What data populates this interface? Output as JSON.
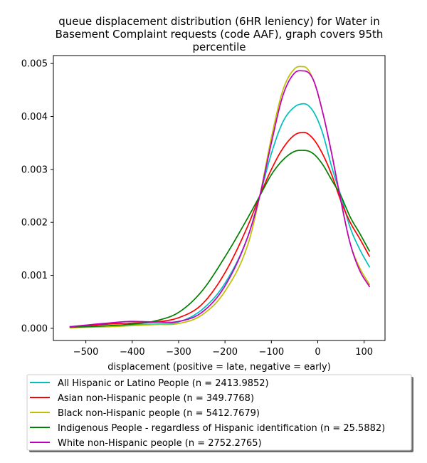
{
  "chart_data": {
    "type": "line",
    "title": [
      "queue displacement distribution (6HR leniency) for Water in",
      "Basement Complaint  requests (code AAF), graph covers 95th",
      "percentile"
    ],
    "xlabel": "displacement (positive = late, negative = early)",
    "ylabel": "",
    "xlim": [
      -570,
      145
    ],
    "ylim": [
      -0.00023,
      0.00515
    ],
    "xticks": [
      -500,
      -400,
      -300,
      -200,
      -100,
      0,
      100
    ],
    "xtick_labels": [
      "−500",
      "−400",
      "−300",
      "−200",
      "−100",
      "0",
      "100"
    ],
    "yticks": [
      0.0,
      0.001,
      0.002,
      0.003,
      0.004,
      0.005
    ],
    "ytick_labels": [
      "0.000",
      "0.001",
      "0.002",
      "0.003",
      "0.004",
      "0.005"
    ],
    "grid": false,
    "legend_position": "below-center",
    "x": [
      -535,
      -500,
      -450,
      -400,
      -350,
      -300,
      -250,
      -200,
      -150,
      -125,
      -100,
      -75,
      -50,
      -30,
      -10,
      10,
      30,
      50,
      70,
      90,
      112
    ],
    "series": [
      {
        "name": "All Hispanic or Latino People (n = 2413.9852)",
        "color": "#00bfbf",
        "values": [
          2e-05,
          3e-05,
          5e-05,
          7e-05,
          8e-05,
          0.00012,
          0.00035,
          0.00085,
          0.00175,
          0.0025,
          0.0033,
          0.0039,
          0.00418,
          0.00424,
          0.0041,
          0.0037,
          0.00305,
          0.0025,
          0.0019,
          0.0015,
          0.00115
        ]
      },
      {
        "name": "Asian non-Hispanic people (n = 349.7768)",
        "color": "#ff0000",
        "values": [
          3e-05,
          5e-05,
          8e-05,
          0.0001,
          0.00012,
          0.0002,
          0.00045,
          0.00105,
          0.00195,
          0.0025,
          0.003,
          0.0034,
          0.00365,
          0.0037,
          0.00358,
          0.0033,
          0.0029,
          0.0024,
          0.002,
          0.0017,
          0.00135
        ]
      },
      {
        "name": "Black non-Hispanic people (n = 5412.7679)",
        "color": "#bfbf00",
        "values": [
          1e-05,
          2e-05,
          3e-05,
          5e-05,
          7e-05,
          9e-05,
          0.00025,
          0.0007,
          0.0016,
          0.0025,
          0.0036,
          0.0045,
          0.0049,
          0.00494,
          0.0047,
          0.0041,
          0.0033,
          0.0024,
          0.0016,
          0.00115,
          0.00082
        ]
      },
      {
        "name": "Indigenous People - regardless of Hispanic identification (n = 25.5882)",
        "color": "#008000",
        "values": [
          2e-05,
          3e-05,
          5e-05,
          8e-05,
          0.00014,
          0.0003,
          0.0007,
          0.00135,
          0.0021,
          0.0025,
          0.0029,
          0.00318,
          0.00334,
          0.00336,
          0.0033,
          0.0031,
          0.0028,
          0.0025,
          0.0021,
          0.0018,
          0.00145
        ]
      },
      {
        "name": "White non-Hispanic people (n = 2752.2765)",
        "color": "#bf00bf",
        "values": [
          3e-05,
          6e-05,
          0.0001,
          0.00013,
          0.00012,
          0.00013,
          0.0003,
          0.0008,
          0.00175,
          0.0025,
          0.0035,
          0.0044,
          0.00482,
          0.00486,
          0.0047,
          0.0041,
          0.0033,
          0.0024,
          0.0016,
          0.0011,
          0.00078
        ]
      }
    ]
  }
}
